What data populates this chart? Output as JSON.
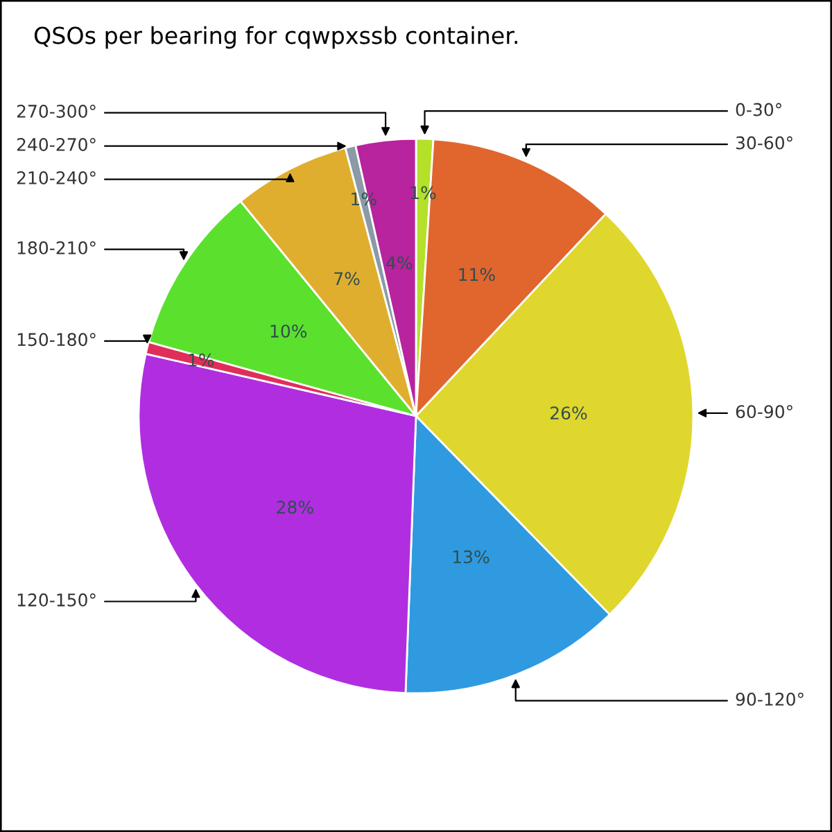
{
  "chart_data": {
    "type": "pie",
    "title": "QSOs per bearing for cqwpxssb container.",
    "categories": [
      "0-30°",
      "30-60°",
      "60-90°",
      "90-120°",
      "120-150°",
      "150-180°",
      "180-210°",
      "210-240°",
      "240-270°",
      "270-300°"
    ],
    "values": [
      1.0,
      11.0,
      25.7,
      12.9,
      28.0,
      0.7,
      9.8,
      6.8,
      0.6,
      3.5
    ],
    "value_labels": [
      "1%",
      "11%",
      "26%",
      "13%",
      "28%",
      "1%",
      "10%",
      "7%",
      "1%",
      "4%"
    ],
    "colors": [
      "#b5e02a",
      "#e0662e",
      "#e0d72e",
      "#2f9ae0",
      "#b02ee0",
      "#e02e5a",
      "#5be02e",
      "#e0ae2e",
      "#8a9aa8",
      "#b8239e"
    ]
  }
}
